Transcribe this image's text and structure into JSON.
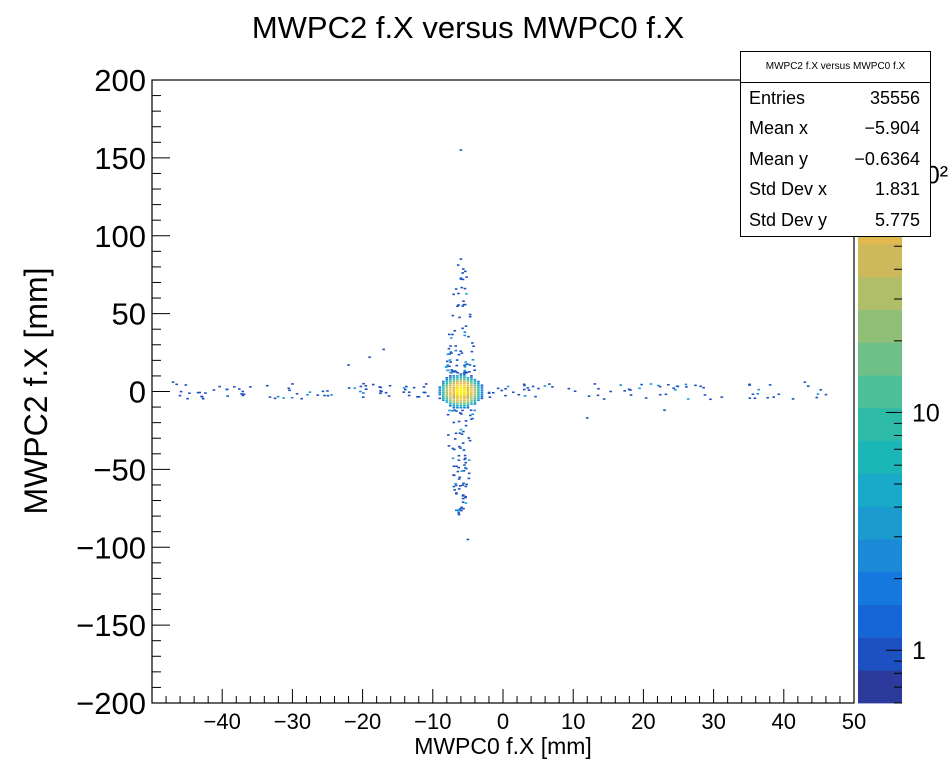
{
  "chart_data": {
    "type": "heatmap",
    "title": "MWPC2 f.X versus MWPC0 f.X",
    "xlabel": "MWPC0 f.X [mm]",
    "ylabel": "MWPC2 f.X [mm]",
    "xlim": [
      -50,
      50
    ],
    "ylim": [
      -200,
      200
    ],
    "x_ticks": [
      -40,
      -30,
      -20,
      -10,
      0,
      10,
      20,
      30,
      40,
      50
    ],
    "x_tick_labels": [
      "−40",
      "−30",
      "−20",
      "−10",
      "0",
      "10",
      "20",
      "30",
      "40",
      "50"
    ],
    "y_ticks": [
      -200,
      -150,
      -100,
      -50,
      0,
      50,
      100,
      150,
      200
    ],
    "y_tick_labels": [
      "−200",
      "−150",
      "−100",
      "−50",
      "0",
      "50",
      "100",
      "150",
      "200"
    ],
    "colorbar": {
      "scale": "log",
      "range": [
        0.6,
        250
      ],
      "tick_values": [
        1,
        10,
        100
      ],
      "tick_labels": [
        "1",
        "10",
        "10²"
      ],
      "colors": [
        "#2c3a9c",
        "#1d50c0",
        "#1666d8",
        "#1478de",
        "#1a8ad6",
        "#1c9bd0",
        "#18aac8",
        "#1bb6b8",
        "#2dbba8",
        "#4cbf98",
        "#6ec088",
        "#90c078",
        "#b0be6a",
        "#cdb95c",
        "#e2b94e",
        "#f2c23e",
        "#f8d62c",
        "#f9e81c",
        "#fbf71a"
      ]
    },
    "grid": false,
    "legend": "none",
    "point_samples": [
      {
        "x": -6,
        "y": 0,
        "count": 250
      },
      {
        "x": -5.5,
        "y": 2,
        "count": 120
      },
      {
        "x": -6.5,
        "y": -2,
        "count": 100
      },
      {
        "x": -6,
        "y": 155,
        "count": 1
      },
      {
        "x": -6,
        "y": 85,
        "count": 1
      },
      {
        "x": -5,
        "y": -95,
        "count": 1
      },
      {
        "x": 46,
        "y": -2,
        "count": 1
      },
      {
        "x": -47,
        "y": 6,
        "count": 1
      },
      {
        "x": 23,
        "y": -12,
        "count": 1
      },
      {
        "x": 12,
        "y": -17,
        "count": 1
      },
      {
        "x": -22,
        "y": 17,
        "count": 1
      },
      {
        "x": -17,
        "y": 27,
        "count": 1
      },
      {
        "x": -19,
        "y": 22,
        "count": 1
      },
      {
        "x": 43,
        "y": 6,
        "count": 1
      }
    ],
    "stats": {
      "title": "MWPC2 f.X versus MWPC0 f.X",
      "rows": [
        {
          "label": "Entries",
          "value": "35556"
        },
        {
          "label": "Mean x",
          "value": "−5.904"
        },
        {
          "label": "Mean y",
          "value": "−0.6364"
        },
        {
          "label": "Std Dev x",
          "value": "1.831"
        },
        {
          "label": "Std Dev y",
          "value": "5.775"
        }
      ]
    }
  }
}
